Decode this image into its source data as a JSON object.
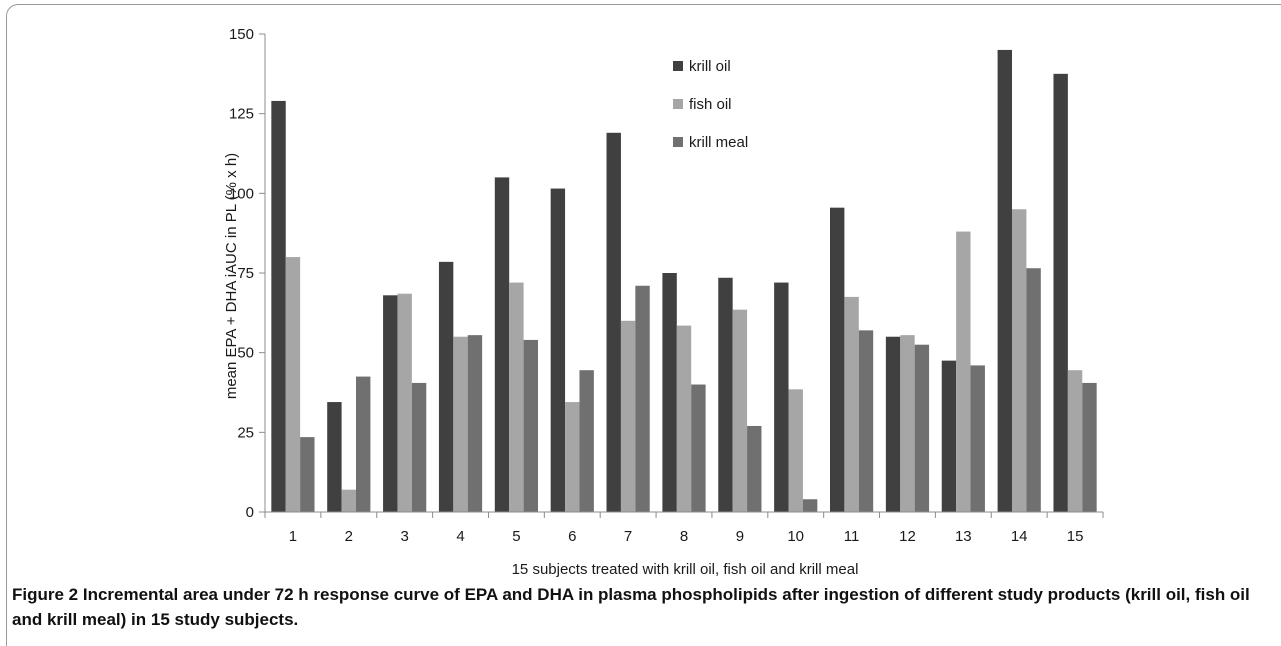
{
  "figure": {
    "caption_label": "Figure 2",
    "caption_text": "Incremental area under 72 h response curve of EPA and DHA in plasma phospholipids after ingestion of different study products (krill oil, fish oil and krill meal) in 15 study subjects."
  },
  "chart_data": {
    "type": "bar",
    "title": "",
    "xlabel": "15 subjects treated with krill oil, fish oil and krill meal",
    "ylabel": "mean EPA + DHA iAUC in PL (% x h)",
    "ylim": [
      0,
      150
    ],
    "yticks": [
      "0",
      "25",
      "50",
      "75",
      "100",
      "125",
      "150"
    ],
    "grid": false,
    "legend_position": "top-center",
    "categories": [
      "1",
      "2",
      "3",
      "4",
      "5",
      "6",
      "7",
      "8",
      "9",
      "10",
      "11",
      "12",
      "13",
      "14",
      "15"
    ],
    "series": [
      {
        "name": "krill oil",
        "color": "#404040",
        "values": [
          129,
          34.5,
          68,
          78.5,
          105,
          101.5,
          119,
          75,
          73.5,
          72,
          95.5,
          55,
          47.5,
          145,
          137.5
        ]
      },
      {
        "name": "fish oil",
        "color": "#a6a6a6",
        "values": [
          80,
          7,
          68.5,
          55,
          72,
          34.5,
          60,
          58.5,
          63.5,
          38.5,
          67.5,
          55.5,
          88,
          95,
          44.5
        ]
      },
      {
        "name": "krill meal",
        "color": "#707070",
        "values": [
          23.5,
          42.5,
          40.5,
          55.5,
          54,
          44.5,
          71,
          40,
          27,
          4,
          57,
          52.5,
          46,
          76.5,
          40.5
        ]
      }
    ]
  }
}
